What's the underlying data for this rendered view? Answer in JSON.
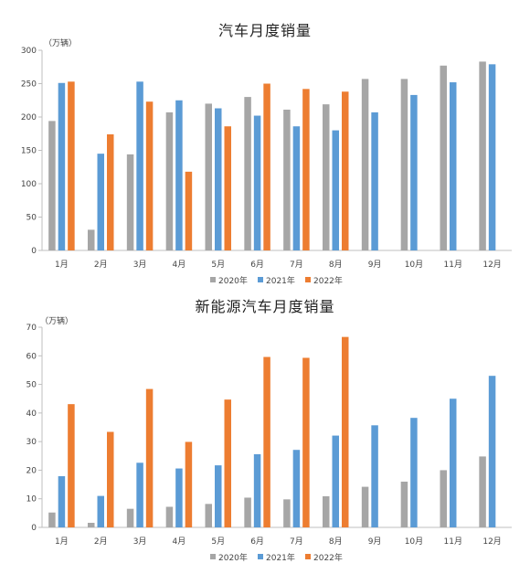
{
  "colors": {
    "2020": "#a6a6a6",
    "2021": "#5b9bd5",
    "2022": "#ed7d31",
    "axis": "#bfbfbf"
  },
  "chart_data": [
    {
      "type": "bar",
      "title": "汽车月度销量",
      "unit": "（万辆）",
      "categories": [
        "1月",
        "2月",
        "3月",
        "4月",
        "5月",
        "6月",
        "7月",
        "8月",
        "9月",
        "10月",
        "11月",
        "12月"
      ],
      "ylim": [
        0,
        300
      ],
      "yticks": [
        "0",
        "50",
        "100",
        "150",
        "200",
        "250",
        "300"
      ],
      "legend_position": "bottom",
      "grid": false,
      "series": [
        {
          "name": "2020年",
          "values": [
            194,
            31,
            144,
            207,
            220,
            230,
            211,
            219,
            257,
            257,
            277,
            283
          ]
        },
        {
          "name": "2021年",
          "values": [
            251,
            145,
            253,
            225,
            213,
            202,
            186,
            180,
            207,
            233,
            252,
            279
          ]
        },
        {
          "name": "2022年",
          "values": [
            253,
            174,
            223,
            118,
            186,
            250,
            242,
            238,
            null,
            null,
            null,
            null
          ]
        }
      ]
    },
    {
      "type": "bar",
      "title": "新能源汽车月度销量",
      "unit": "（万辆）",
      "categories": [
        "1月",
        "2月",
        "3月",
        "4月",
        "5月",
        "6月",
        "7月",
        "8月",
        "9月",
        "10月",
        "11月",
        "12月"
      ],
      "ylim": [
        0,
        70
      ],
      "yticks": [
        "0",
        "10",
        "20",
        "30",
        "40",
        "50",
        "60",
        "70"
      ],
      "legend_position": "bottom",
      "grid": false,
      "series": [
        {
          "name": "2020年",
          "values": [
            5.2,
            1.6,
            6.5,
            7.2,
            8.2,
            10.4,
            9.8,
            10.9,
            14.2,
            16.0,
            20.0,
            24.8
          ]
        },
        {
          "name": "2021年",
          "values": [
            17.9,
            11.0,
            22.6,
            20.6,
            21.7,
            25.6,
            27.1,
            32.1,
            35.7,
            38.3,
            45.0,
            53.0
          ]
        },
        {
          "name": "2022年",
          "values": [
            43.1,
            33.4,
            48.4,
            29.9,
            44.7,
            59.6,
            59.3,
            66.6,
            null,
            null,
            null,
            null
          ]
        }
      ]
    }
  ]
}
